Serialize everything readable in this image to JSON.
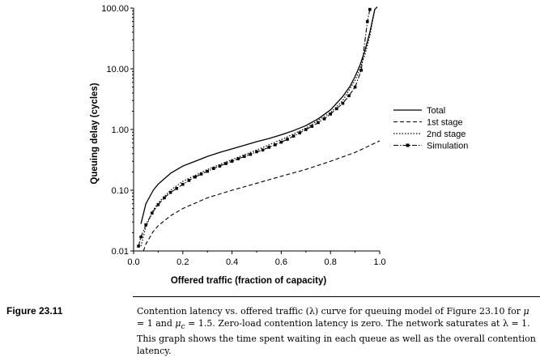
{
  "chart_data": {
    "type": "line",
    "xlabel": "Offered traffic (fraction of capacity)",
    "ylabel": "Queuing delay (cycles)",
    "xlim": [
      0.0,
      1.0
    ],
    "ylim": [
      0.01,
      100.0
    ],
    "yscale": "log",
    "grid": false,
    "legend_position": "right",
    "x_ticks": [
      "0.0",
      "0.2",
      "0.4",
      "0.6",
      "0.8",
      "1.0"
    ],
    "y_ticks": [
      "0.01",
      "0.10",
      "1.00",
      "10.00",
      "100.00"
    ],
    "series": [
      {
        "name": "Total",
        "style": "solid",
        "x": [
          0.03,
          0.05,
          0.08,
          0.1,
          0.15,
          0.2,
          0.25,
          0.3,
          0.35,
          0.4,
          0.45,
          0.5,
          0.55,
          0.6,
          0.65,
          0.7,
          0.75,
          0.8,
          0.85,
          0.88,
          0.9,
          0.92,
          0.94,
          0.96,
          0.98,
          0.99
        ],
        "y": [
          0.028,
          0.06,
          0.1,
          0.126,
          0.19,
          0.25,
          0.3,
          0.36,
          0.42,
          0.48,
          0.55,
          0.63,
          0.71,
          0.82,
          0.96,
          1.16,
          1.5,
          2.1,
          3.5,
          5.2,
          7.5,
          11.5,
          20.0,
          40.0,
          95.0,
          105.0
        ]
      },
      {
        "name": "1st stage",
        "style": "dashed",
        "x": [
          0.04,
          0.05,
          0.08,
          0.1,
          0.15,
          0.2,
          0.3,
          0.4,
          0.5,
          0.6,
          0.7,
          0.8,
          0.9,
          1.0
        ],
        "y": [
          0.01,
          0.013,
          0.021,
          0.026,
          0.038,
          0.05,
          0.075,
          0.1,
          0.13,
          0.17,
          0.22,
          0.3,
          0.42,
          0.65
        ]
      },
      {
        "name": "2nd stage",
        "style": "dotted",
        "x": [
          0.03,
          0.05,
          0.08,
          0.1,
          0.15,
          0.2,
          0.3,
          0.4,
          0.5,
          0.6,
          0.7,
          0.8,
          0.85,
          0.9,
          0.92,
          0.94,
          0.96,
          0.98
        ],
        "y": [
          0.012,
          0.025,
          0.047,
          0.062,
          0.1,
          0.14,
          0.22,
          0.32,
          0.46,
          0.68,
          1.05,
          1.9,
          3.0,
          6.5,
          10.0,
          17.0,
          35.0,
          95.0
        ]
      },
      {
        "name": "Simulation",
        "style": "dashdot-marker",
        "x": [
          0.02,
          0.03,
          0.05,
          0.075,
          0.1,
          0.125,
          0.15,
          0.175,
          0.2,
          0.225,
          0.25,
          0.275,
          0.3,
          0.325,
          0.35,
          0.375,
          0.4,
          0.425,
          0.45,
          0.475,
          0.5,
          0.525,
          0.55,
          0.575,
          0.6,
          0.625,
          0.65,
          0.675,
          0.7,
          0.725,
          0.75,
          0.775,
          0.8,
          0.825,
          0.85,
          0.875,
          0.9,
          0.925,
          0.95,
          0.96
        ],
        "y": [
          0.012,
          0.017,
          0.027,
          0.042,
          0.058,
          0.075,
          0.092,
          0.107,
          0.125,
          0.145,
          0.165,
          0.185,
          0.205,
          0.228,
          0.25,
          0.275,
          0.3,
          0.33,
          0.36,
          0.39,
          0.43,
          0.46,
          0.51,
          0.56,
          0.62,
          0.69,
          0.78,
          0.88,
          1.0,
          1.13,
          1.3,
          1.5,
          1.8,
          2.2,
          2.7,
          3.6,
          5.0,
          9.5,
          60.0,
          95.0
        ]
      }
    ]
  },
  "caption": {
    "label": "Figure 23.11",
    "text_1": "Contention latency vs. offered traffic (λ) curve for queuing model of Figure 23.10 for ",
    "mu": "μ",
    "text_2": " = 1 and ",
    "muc": "μ",
    "muc_sub": "c",
    "text_3": " = 1.5. Zero-load contention latency is zero. The network saturates at λ = 1. This graph shows the time spent waiting in each queue as well as the overall contention latency."
  }
}
